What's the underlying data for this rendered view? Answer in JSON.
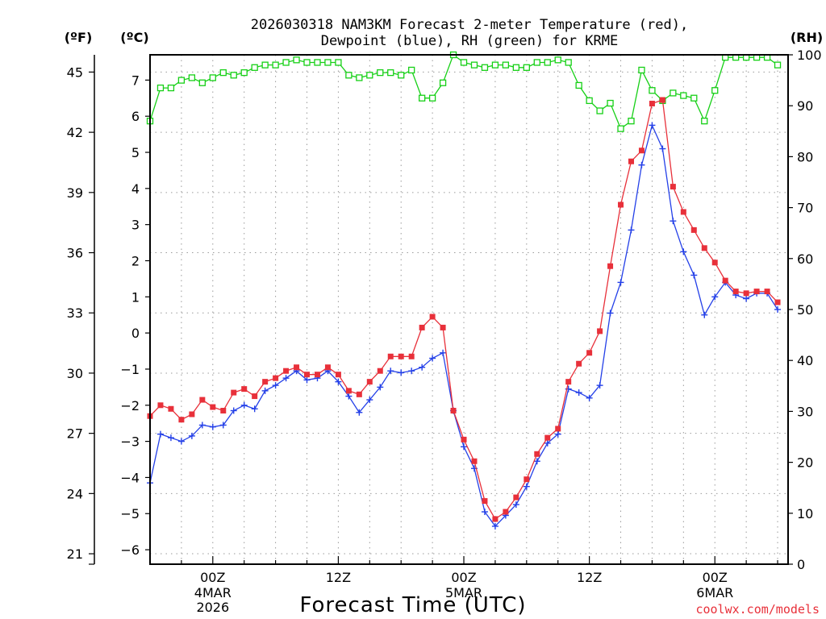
{
  "chart_data": {
    "type": "line",
    "title_line1": "2026030318 NAM3KM Forecast 2-meter Temperature (red),",
    "title_line2": "Dewpoint (blue), RH (green) for KRME",
    "xlabel": "Forecast Time (UTC)",
    "watermark": "coolwx.com/models",
    "unit_labels": {
      "fahrenheit": "(ºF)",
      "celsius": "(ºC)",
      "rh": "(RH)"
    },
    "x_range_hours": [
      0,
      61
    ],
    "celsius_range": [
      -6.4,
      7.7
    ],
    "rh_range": [
      0,
      100
    ],
    "fahrenheit_ticks": [
      "21",
      "24",
      "27",
      "30",
      "33",
      "36",
      "39",
      "42",
      "45"
    ],
    "celsius_ticks": [
      "-6",
      "-5",
      "-4",
      "-3",
      "-2",
      "-1",
      "0",
      "1",
      "2",
      "3",
      "4",
      "5",
      "6",
      "7"
    ],
    "rh_ticks": [
      "0",
      "10",
      "20",
      "30",
      "40",
      "50",
      "60",
      "70",
      "80",
      "90",
      "100"
    ],
    "x_tick_labels": [
      {
        "hour": 6,
        "lines": [
          "00Z",
          "4MAR",
          "2026"
        ]
      },
      {
        "hour": 18,
        "lines": [
          "12Z"
        ]
      },
      {
        "hour": 30,
        "lines": [
          "00Z",
          "5MAR"
        ]
      },
      {
        "hour": 42,
        "lines": [
          "12Z"
        ]
      },
      {
        "hour": 54,
        "lines": [
          "00Z",
          "6MAR"
        ]
      }
    ],
    "series": [
      {
        "name": "Temperature",
        "color": "#e8303a",
        "marker": "filled-square",
        "hour_start": 0,
        "values": [
          -2.3,
          -2.0,
          -2.1,
          -2.4,
          -2.25,
          -1.85,
          -2.05,
          -2.15,
          -1.65,
          -1.55,
          -1.75,
          -1.35,
          -1.25,
          -1.05,
          -0.95,
          -1.15,
          -1.15,
          -0.95,
          -1.15,
          -1.6,
          -1.7,
          -1.35,
          -1.05,
          -0.65,
          -0.65,
          -0.65,
          0.15,
          0.45,
          0.15,
          -2.15,
          -2.95,
          -3.55,
          -4.65,
          -5.15,
          -4.95,
          -4.55,
          -4.05,
          -3.35,
          -2.9,
          -2.65,
          -1.35,
          -0.85,
          -0.55,
          0.05,
          1.85,
          3.55,
          4.75,
          5.05,
          6.35,
          6.45,
          4.05,
          3.35,
          2.85,
          2.35,
          1.95,
          1.45,
          1.15,
          1.1,
          1.15,
          1.15,
          0.85
        ]
      },
      {
        "name": "Dewpoint",
        "color": "#2440e8",
        "marker": "plus",
        "hour_start": 0,
        "values": [
          -4.15,
          -2.8,
          -2.9,
          -3.0,
          -2.85,
          -2.55,
          -2.6,
          -2.55,
          -2.15,
          -2.0,
          -2.1,
          -1.6,
          -1.45,
          -1.25,
          -1.05,
          -1.3,
          -1.25,
          -1.05,
          -1.35,
          -1.75,
          -2.2,
          -1.85,
          -1.5,
          -1.05,
          -1.1,
          -1.05,
          -0.95,
          -0.7,
          -0.55,
          -2.15,
          -3.15,
          -3.75,
          -4.95,
          -5.35,
          -5.05,
          -4.75,
          -4.25,
          -3.55,
          -3.05,
          -2.8,
          -1.55,
          -1.65,
          -1.8,
          -1.45,
          0.55,
          1.4,
          2.85,
          4.65,
          5.75,
          5.1,
          3.1,
          2.25,
          1.6,
          0.5,
          1.0,
          1.4,
          1.05,
          0.95,
          1.1,
          1.1,
          0.65
        ]
      },
      {
        "name": "RH",
        "color": "#16d016",
        "marker": "open-square",
        "hour_start": 0,
        "values": [
          87,
          93.5,
          93.5,
          95,
          95.5,
          94.5,
          95.5,
          96.5,
          96,
          96.5,
          97.5,
          98,
          98,
          98.5,
          99,
          98.5,
          98.5,
          98.5,
          98.5,
          96,
          95.5,
          96,
          96.5,
          96.5,
          96,
          97,
          91.5,
          91.5,
          94.5,
          100,
          98.5,
          98,
          97.5,
          98,
          98,
          97.5,
          97.5,
          98.5,
          98.5,
          99,
          98.5,
          94,
          91,
          89,
          90.5,
          85.5,
          87,
          97,
          93,
          91,
          92.5,
          92,
          91.5,
          87,
          93,
          99.5,
          99.5,
          99.5,
          99.5,
          99.5,
          98
        ]
      }
    ]
  }
}
